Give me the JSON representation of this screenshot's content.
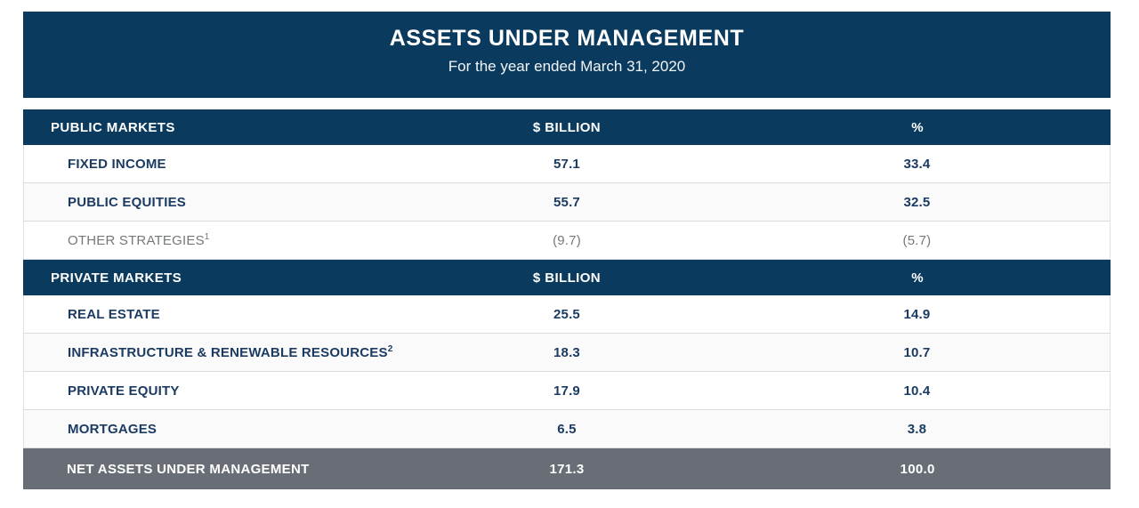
{
  "banner": {
    "title": "ASSETS UNDER MANAGEMENT",
    "subtitle": "For the year ended March 31, 2020"
  },
  "table": {
    "sections": [
      {
        "header": {
          "label": "PUBLIC MARKETS",
          "col2": "$ BILLION",
          "col3": "%"
        },
        "rows": [
          {
            "label": "FIXED INCOME",
            "sup": "",
            "billion": "57.1",
            "percent": "33.4"
          },
          {
            "label": "PUBLIC EQUITIES",
            "sup": "",
            "billion": "55.7",
            "percent": "32.5"
          },
          {
            "label": "OTHER STRATEGIES",
            "sup": "1",
            "billion": "(9.7)",
            "percent": "(5.7)"
          }
        ]
      },
      {
        "header": {
          "label": "PRIVATE MARKETS",
          "col2": "$ BILLION",
          "col3": "%"
        },
        "rows": [
          {
            "label": "REAL ESTATE",
            "sup": "",
            "billion": "25.5",
            "percent": "14.9"
          },
          {
            "label": "INFRASTRUCTURE & RENEWABLE RESOURCES",
            "sup": "2",
            "billion": "18.3",
            "percent": "10.7"
          },
          {
            "label": "PRIVATE EQUITY",
            "sup": "",
            "billion": "17.9",
            "percent": "10.4"
          },
          {
            "label": "MORTGAGES",
            "sup": "",
            "billion": "6.5",
            "percent": "3.8"
          }
        ]
      }
    ],
    "footer": {
      "label": "NET ASSETS UNDER MANAGEMENT",
      "billion": "171.3",
      "percent": "100.0"
    }
  },
  "colors": {
    "navy_band": "#0A3A5D",
    "footer_gray": "#696E76",
    "row_text_navy": "#1B3B63",
    "muted_text_gray": "#75787B",
    "row_border": "#D8DBDF",
    "white": "#FFFFFF"
  },
  "chart_data": {
    "type": "table",
    "title": "ASSETS UNDER MANAGEMENT",
    "subtitle": "For the year ended March 31, 2020",
    "columns": [
      "Category",
      "$ Billion",
      "%"
    ],
    "sections": [
      {
        "name": "PUBLIC MARKETS",
        "rows": [
          {
            "category": "FIXED INCOME",
            "billion": 57.1,
            "percent": 33.4
          },
          {
            "category": "PUBLIC EQUITIES",
            "billion": 55.7,
            "percent": 32.5
          },
          {
            "category": "OTHER STRATEGIES (footnote 1)",
            "billion": -9.7,
            "percent": -5.7,
            "shown_as": [
              "(9.7)",
              "(5.7)"
            ]
          }
        ]
      },
      {
        "name": "PRIVATE MARKETS",
        "rows": [
          {
            "category": "REAL ESTATE",
            "billion": 25.5,
            "percent": 14.9
          },
          {
            "category": "INFRASTRUCTURE & RENEWABLE RESOURCES (footnote 2)",
            "billion": 18.3,
            "percent": 10.7
          },
          {
            "category": "PRIVATE EQUITY",
            "billion": 17.9,
            "percent": 10.4
          },
          {
            "category": "MORTGAGES",
            "billion": 6.5,
            "percent": 3.8
          }
        ]
      }
    ],
    "total": {
      "category": "NET ASSETS UNDER MANAGEMENT",
      "billion": 171.3,
      "percent": 100.0
    }
  }
}
